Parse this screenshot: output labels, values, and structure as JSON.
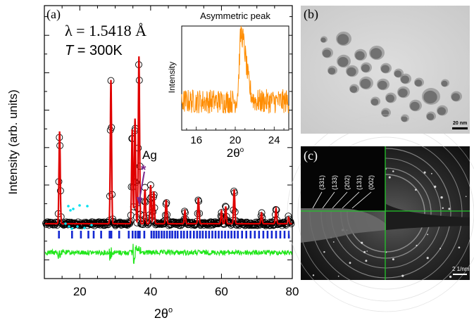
{
  "panel_a": {
    "label": "(a)",
    "lambda_text": "λ = 1.5418 Å",
    "temp_var": "T",
    "temp_value": " = 300K",
    "ylabel": "Intensity (arb. units)",
    "xlabel_base": "2θ",
    "xlabel_sup": "o",
    "ag_label": "Ag",
    "ag_marker": "*",
    "colors": {
      "observed": "#000000",
      "calculated": "#e00000",
      "bragg": "#1428d2",
      "difference": "#22e61c",
      "dots": "#00e0f0",
      "marker": "#7a2a8c",
      "inset": "#ff8c00"
    }
  },
  "inset": {
    "title": "Asymmetric peak",
    "ylabel": "Intensity",
    "xlabel_base": "2θ",
    "xlabel_sup": "o"
  },
  "panel_b": {
    "label": "(b)",
    "scale_text": "20 nm"
  },
  "panel_c": {
    "label": "(c)",
    "rings": [
      "(331)",
      "(133)",
      "(202)",
      "(131)",
      "(002)"
    ],
    "scale_text": "2 1/nm"
  },
  "chart_data": [
    {
      "type": "line",
      "title": "",
      "xlabel": "2θ°",
      "ylabel": "Intensity (arb. units)",
      "xlim": [
        10,
        80
      ],
      "xticks": [
        20,
        40,
        60,
        80
      ],
      "baseline": 1.0,
      "peaks": [
        {
          "x": 14.3,
          "y": 5.3
        },
        {
          "x": 28.8,
          "y": 7.7
        },
        {
          "x": 34.8,
          "y": 5.4
        },
        {
          "x": 35.6,
          "y": 5.9
        },
        {
          "x": 36.7,
          "y": 8.8
        },
        {
          "x": 38.4,
          "y": 2.6
        },
        {
          "x": 40.0,
          "y": 2.8
        },
        {
          "x": 40.9,
          "y": 2.5
        },
        {
          "x": 44.4,
          "y": 2.1
        },
        {
          "x": 49.7,
          "y": 1.6
        },
        {
          "x": 53.5,
          "y": 2.2
        },
        {
          "x": 60.0,
          "y": 1.6
        },
        {
          "x": 61.2,
          "y": 1.8
        },
        {
          "x": 63.6,
          "y": 2.6
        },
        {
          "x": 71.3,
          "y": 1.5
        },
        {
          "x": 75.4,
          "y": 1.7
        },
        {
          "x": 78.9,
          "y": 1.3
        }
      ],
      "bragg_positions": [
        14.1,
        17.8,
        20.3,
        22.4,
        23.9,
        26.0,
        28.4,
        28.9,
        31.1,
        33.8,
        34.9,
        35.7,
        36.4,
        36.9,
        38.2,
        40.2,
        40.9,
        41.6,
        42.3,
        43.1,
        43.8,
        44.6,
        45.4,
        46.1,
        46.9,
        47.6,
        48.6,
        49.4,
        50.3,
        51.2,
        52.2,
        53.1,
        53.9,
        54.7,
        55.6,
        56.5,
        57.4,
        58.3,
        59.2,
        60.1,
        61.0,
        61.9,
        62.8,
        63.7,
        64.6,
        65.8,
        67.0,
        68.2,
        69.4,
        70.6,
        71.8,
        73.0,
        74.2,
        75.4,
        76.6,
        77.8,
        79.0
      ],
      "series": [
        {
          "name": "",
          "role": "observed"
        },
        {
          "name": "",
          "role": "calculated"
        },
        {
          "name": "",
          "role": "bragg"
        },
        {
          "name": "",
          "role": "difference"
        }
      ]
    },
    {
      "type": "line",
      "title": "Asymmetric peak",
      "xlabel": "2θ°",
      "ylabel": "Intensity",
      "xlim": [
        14.5,
        25.5
      ],
      "xticks": [
        16,
        20,
        24
      ],
      "peak": {
        "x": 20.6,
        "height": 1.0,
        "left_width": 0.25,
        "right_width": 0.7
      },
      "noise_level": 0.18
    }
  ]
}
